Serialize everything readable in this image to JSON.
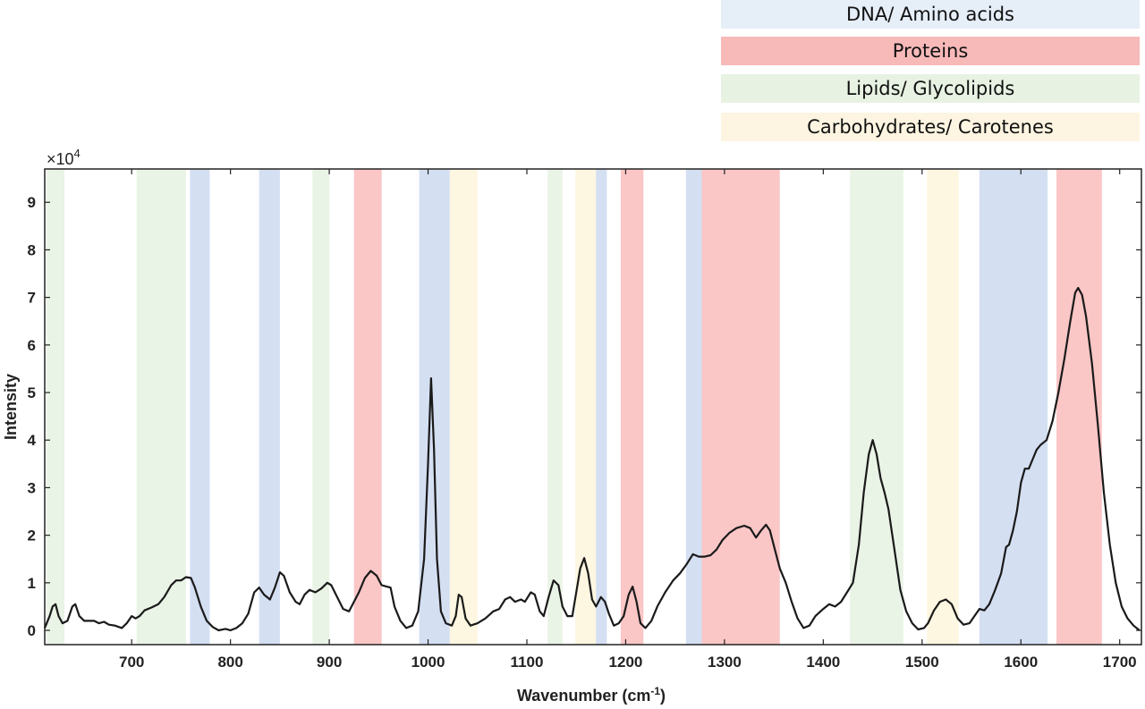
{
  "legend": [
    {
      "label": "DNA/ Amino acids",
      "color": "#e6eef8"
    },
    {
      "label": "Proteins",
      "color": "#f8b9b9"
    },
    {
      "label": "Lipids/ Glycolipids",
      "color": "#e7f2e3"
    },
    {
      "label": "Carbohydrates/ Carotenes",
      "color": "#fdf5e1"
    }
  ],
  "chart_data": {
    "type": "line",
    "xlabel": "Wavenumber (cm",
    "xlabel_sup": "-1",
    "xlabel_close": ")",
    "ylabel": "Intensity",
    "y_multiplier": "×10",
    "y_multiplier_exp": "4",
    "xlim": [
      612,
      1722
    ],
    "ylim": [
      -0.3,
      9.7
    ],
    "x_ticks": [
      700,
      800,
      900,
      1000,
      1100,
      1200,
      1300,
      1400,
      1500,
      1600,
      1700
    ],
    "y_ticks": [
      0,
      1,
      2,
      3,
      4,
      5,
      6,
      7,
      8,
      9
    ],
    "grid": false,
    "band_colors": {
      "dna": "#d4dff2",
      "protein": "#fbc6c6",
      "lipid": "#e9f3e6",
      "carb": "#fdf6e0"
    },
    "bands": [
      {
        "category": "lipid",
        "x": [
          614,
          632
        ]
      },
      {
        "category": "lipid",
        "x": [
          705,
          755
        ]
      },
      {
        "category": "dna",
        "x": [
          759,
          779
        ]
      },
      {
        "category": "dna",
        "x": [
          829,
          850
        ]
      },
      {
        "category": "lipid",
        "x": [
          883,
          900
        ]
      },
      {
        "category": "protein",
        "x": [
          925,
          953
        ]
      },
      {
        "category": "dna",
        "x": [
          991,
          1022
        ]
      },
      {
        "category": "carb",
        "x": [
          1022,
          1050
        ]
      },
      {
        "category": "lipid",
        "x": [
          1121,
          1136
        ]
      },
      {
        "category": "carb",
        "x": [
          1149,
          1170
        ]
      },
      {
        "category": "dna",
        "x": [
          1170,
          1181
        ]
      },
      {
        "category": "protein",
        "x": [
          1195,
          1218
        ]
      },
      {
        "category": "dna",
        "x": [
          1261,
          1277
        ]
      },
      {
        "category": "protein",
        "x": [
          1277,
          1356
        ]
      },
      {
        "category": "lipid",
        "x": [
          1427,
          1481
        ]
      },
      {
        "category": "carb",
        "x": [
          1505,
          1537
        ]
      },
      {
        "category": "dna",
        "x": [
          1558,
          1627
        ]
      },
      {
        "category": "protein",
        "x": [
          1636,
          1682
        ]
      }
    ],
    "series": [
      {
        "color": "#1a1a1a",
        "points": [
          [
            612,
            0.05
          ],
          [
            617,
            0.3
          ],
          [
            620,
            0.5
          ],
          [
            623,
            0.55
          ],
          [
            626,
            0.3
          ],
          [
            630,
            0.15
          ],
          [
            635,
            0.2
          ],
          [
            640,
            0.5
          ],
          [
            643,
            0.55
          ],
          [
            647,
            0.3
          ],
          [
            652,
            0.2
          ],
          [
            657,
            0.2
          ],
          [
            662,
            0.2
          ],
          [
            667,
            0.15
          ],
          [
            672,
            0.18
          ],
          [
            677,
            0.12
          ],
          [
            683,
            0.1
          ],
          [
            690,
            0.05
          ],
          [
            695,
            0.15
          ],
          [
            700,
            0.3
          ],
          [
            704,
            0.25
          ],
          [
            708,
            0.3
          ],
          [
            713,
            0.42
          ],
          [
            720,
            0.48
          ],
          [
            727,
            0.55
          ],
          [
            733,
            0.7
          ],
          [
            740,
            0.95
          ],
          [
            745,
            1.05
          ],
          [
            750,
            1.05
          ],
          [
            755,
            1.12
          ],
          [
            760,
            1.1
          ],
          [
            764,
            0.9
          ],
          [
            770,
            0.5
          ],
          [
            776,
            0.2
          ],
          [
            782,
            0.07
          ],
          [
            788,
            0.0
          ],
          [
            795,
            0.03
          ],
          [
            800,
            0.0
          ],
          [
            806,
            0.05
          ],
          [
            812,
            0.15
          ],
          [
            818,
            0.35
          ],
          [
            824,
            0.8
          ],
          [
            829,
            0.9
          ],
          [
            834,
            0.75
          ],
          [
            840,
            0.65
          ],
          [
            845,
            0.9
          ],
          [
            850,
            1.22
          ],
          [
            854,
            1.15
          ],
          [
            860,
            0.8
          ],
          [
            866,
            0.6
          ],
          [
            870,
            0.55
          ],
          [
            875,
            0.75
          ],
          [
            880,
            0.85
          ],
          [
            886,
            0.8
          ],
          [
            892,
            0.88
          ],
          [
            898,
            1.0
          ],
          [
            902,
            0.95
          ],
          [
            908,
            0.7
          ],
          [
            914,
            0.45
          ],
          [
            920,
            0.4
          ],
          [
            925,
            0.6
          ],
          [
            930,
            0.8
          ],
          [
            936,
            1.1
          ],
          [
            942,
            1.25
          ],
          [
            948,
            1.15
          ],
          [
            953,
            0.95
          ],
          [
            958,
            0.92
          ],
          [
            962,
            0.9
          ],
          [
            966,
            0.5
          ],
          [
            972,
            0.2
          ],
          [
            978,
            0.05
          ],
          [
            984,
            0.1
          ],
          [
            990,
            0.4
          ],
          [
            996,
            1.5
          ],
          [
            1000,
            3.5
          ],
          [
            1003,
            5.3
          ],
          [
            1006,
            3.8
          ],
          [
            1009,
            1.5
          ],
          [
            1013,
            0.4
          ],
          [
            1018,
            0.15
          ],
          [
            1024,
            0.1
          ],
          [
            1028,
            0.3
          ],
          [
            1031,
            0.75
          ],
          [
            1034,
            0.7
          ],
          [
            1038,
            0.25
          ],
          [
            1043,
            0.1
          ],
          [
            1050,
            0.15
          ],
          [
            1058,
            0.25
          ],
          [
            1066,
            0.4
          ],
          [
            1072,
            0.45
          ],
          [
            1078,
            0.65
          ],
          [
            1083,
            0.7
          ],
          [
            1088,
            0.6
          ],
          [
            1094,
            0.65
          ],
          [
            1098,
            0.6
          ],
          [
            1104,
            0.8
          ],
          [
            1108,
            0.75
          ],
          [
            1113,
            0.4
          ],
          [
            1117,
            0.3
          ],
          [
            1122,
            0.7
          ],
          [
            1127,
            1.05
          ],
          [
            1132,
            0.95
          ],
          [
            1136,
            0.5
          ],
          [
            1141,
            0.3
          ],
          [
            1146,
            0.3
          ],
          [
            1150,
            0.8
          ],
          [
            1154,
            1.3
          ],
          [
            1158,
            1.52
          ],
          [
            1162,
            1.2
          ],
          [
            1166,
            0.65
          ],
          [
            1170,
            0.5
          ],
          [
            1175,
            0.7
          ],
          [
            1179,
            0.6
          ],
          [
            1183,
            0.35
          ],
          [
            1188,
            0.1
          ],
          [
            1193,
            0.15
          ],
          [
            1198,
            0.3
          ],
          [
            1203,
            0.75
          ],
          [
            1207,
            0.92
          ],
          [
            1211,
            0.6
          ],
          [
            1215,
            0.15
          ],
          [
            1220,
            0.05
          ],
          [
            1226,
            0.2
          ],
          [
            1232,
            0.5
          ],
          [
            1240,
            0.8
          ],
          [
            1248,
            1.05
          ],
          [
            1255,
            1.2
          ],
          [
            1262,
            1.4
          ],
          [
            1268,
            1.6
          ],
          [
            1274,
            1.55
          ],
          [
            1280,
            1.55
          ],
          [
            1286,
            1.58
          ],
          [
            1292,
            1.7
          ],
          [
            1298,
            1.9
          ],
          [
            1305,
            2.05
          ],
          [
            1312,
            2.15
          ],
          [
            1320,
            2.2
          ],
          [
            1326,
            2.15
          ],
          [
            1332,
            1.95
          ],
          [
            1337,
            2.1
          ],
          [
            1342,
            2.22
          ],
          [
            1346,
            2.1
          ],
          [
            1351,
            1.7
          ],
          [
            1356,
            1.3
          ],
          [
            1362,
            1.0
          ],
          [
            1368,
            0.6
          ],
          [
            1374,
            0.25
          ],
          [
            1380,
            0.05
          ],
          [
            1386,
            0.1
          ],
          [
            1392,
            0.3
          ],
          [
            1400,
            0.45
          ],
          [
            1406,
            0.55
          ],
          [
            1412,
            0.5
          ],
          [
            1418,
            0.6
          ],
          [
            1424,
            0.8
          ],
          [
            1430,
            1.0
          ],
          [
            1436,
            1.8
          ],
          [
            1441,
            2.9
          ],
          [
            1446,
            3.7
          ],
          [
            1450,
            4.0
          ],
          [
            1454,
            3.7
          ],
          [
            1458,
            3.2
          ],
          [
            1462,
            2.9
          ],
          [
            1466,
            2.55
          ],
          [
            1472,
            1.7
          ],
          [
            1478,
            0.85
          ],
          [
            1484,
            0.4
          ],
          [
            1490,
            0.15
          ],
          [
            1496,
            0.02
          ],
          [
            1502,
            0.05
          ],
          [
            1506,
            0.15
          ],
          [
            1512,
            0.42
          ],
          [
            1518,
            0.6
          ],
          [
            1524,
            0.65
          ],
          [
            1530,
            0.55
          ],
          [
            1536,
            0.25
          ],
          [
            1542,
            0.12
          ],
          [
            1548,
            0.15
          ],
          [
            1553,
            0.3
          ],
          [
            1558,
            0.45
          ],
          [
            1563,
            0.42
          ],
          [
            1568,
            0.55
          ],
          [
            1574,
            0.85
          ],
          [
            1580,
            1.2
          ],
          [
            1585,
            1.75
          ],
          [
            1588,
            1.8
          ],
          [
            1592,
            2.1
          ],
          [
            1596,
            2.5
          ],
          [
            1600,
            3.1
          ],
          [
            1604,
            3.4
          ],
          [
            1608,
            3.4
          ],
          [
            1612,
            3.6
          ],
          [
            1616,
            3.8
          ],
          [
            1620,
            3.9
          ],
          [
            1626,
            4.0
          ],
          [
            1632,
            4.4
          ],
          [
            1638,
            5.0
          ],
          [
            1644,
            5.7
          ],
          [
            1650,
            6.5
          ],
          [
            1655,
            7.1
          ],
          [
            1658,
            7.2
          ],
          [
            1662,
            7.05
          ],
          [
            1666,
            6.6
          ],
          [
            1672,
            5.6
          ],
          [
            1678,
            4.3
          ],
          [
            1684,
            2.9
          ],
          [
            1690,
            1.8
          ],
          [
            1696,
            1.0
          ],
          [
            1702,
            0.5
          ],
          [
            1708,
            0.25
          ],
          [
            1714,
            0.1
          ],
          [
            1720,
            0.0
          ]
        ]
      }
    ]
  }
}
